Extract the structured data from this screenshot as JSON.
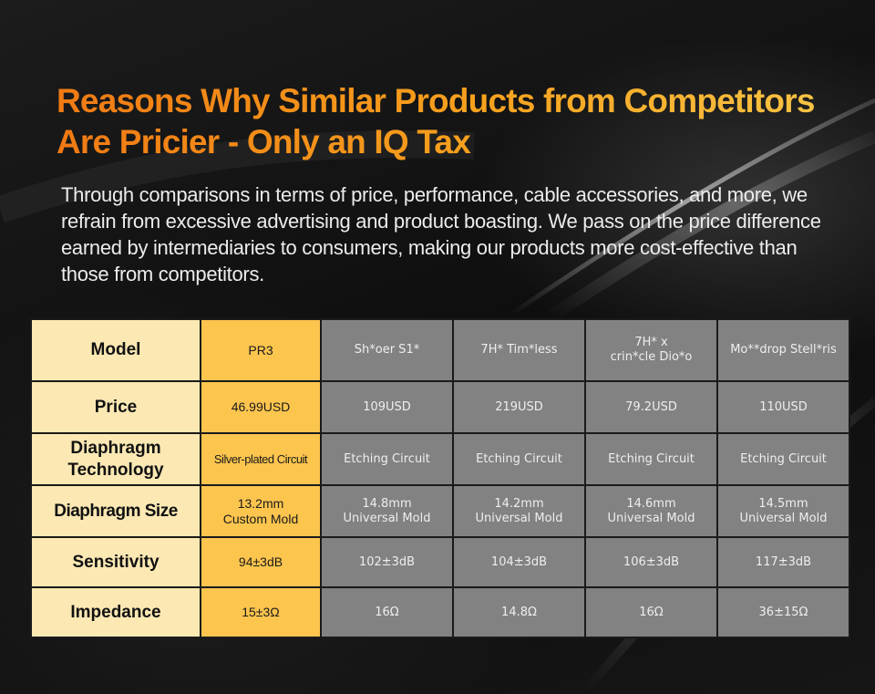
{
  "title": "Reasons Why Similar Products from Competitors Are Pricier - Only an IQ Tax",
  "subtitle": "Through comparisons in terms of price, performance, cable accessories, and more, we refrain from excessive advertising and product boasting. We pass on the price difference earned by intermediaries to consumers, making our products more cost-effective than those from competitors.",
  "colors": {
    "title_start": "#f07a14",
    "title_end": "#f9c545",
    "label_cell": "#fbe8b3",
    "our_product_cell": "#fcc54e",
    "competitor_cell": "#828282"
  },
  "table": {
    "header": {
      "label": "Model",
      "ours": "PR3",
      "competitors": [
        "Sh*oer S1*",
        "7H* Tim*less",
        "7H* x\ncrin*cle Dio*o",
        "Mo**drop Stell*ris"
      ]
    },
    "rows": [
      {
        "label": "Price",
        "ours": "46.99USD",
        "competitors": [
          "109USD",
          "219USD",
          "79.2USD",
          "110USD"
        ]
      },
      {
        "label": "Diaphragm Technology",
        "ours": "Silver-plated Circuit",
        "competitors": [
          "Etching Circuit",
          "Etching Circuit",
          "Etching Circuit",
          "Etching Circuit"
        ]
      },
      {
        "label": "Diaphragm Size",
        "ours": "13.2mm\nCustom Mold",
        "competitors": [
          "14.8mm\nUniversal Mold",
          "14.2mm\nUniversal Mold",
          "14.6mm\nUniversal Mold",
          "14.5mm\nUniversal Mold"
        ]
      },
      {
        "label": "Sensitivity",
        "ours": "94±3dB",
        "competitors": [
          "102±3dB",
          "104±3dB",
          "106±3dB",
          "117±3dB"
        ]
      },
      {
        "label": "Impedance",
        "ours": "15±3Ω",
        "competitors": [
          "16Ω",
          "14.8Ω",
          "16Ω",
          "36±15Ω"
        ]
      }
    ]
  }
}
